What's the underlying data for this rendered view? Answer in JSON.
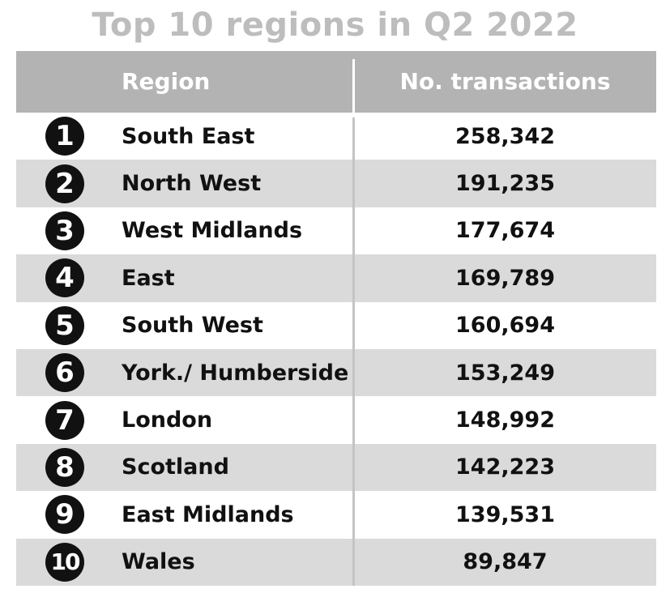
{
  "chart_data": {
    "type": "table",
    "title": "Top 10 regions in Q2 2022",
    "columns": [
      "Region",
      "No. transactions"
    ],
    "rows": [
      {
        "rank": "1",
        "region": "South East",
        "transactions": "258,342"
      },
      {
        "rank": "2",
        "region": "North West",
        "transactions": "191,235"
      },
      {
        "rank": "3",
        "region": "West Midlands",
        "transactions": "177,674"
      },
      {
        "rank": "4",
        "region": "East",
        "transactions": "169,789"
      },
      {
        "rank": "5",
        "region": "South West",
        "transactions": "160,694"
      },
      {
        "rank": "6",
        "region": "York./ Humberside",
        "transactions": "153,249"
      },
      {
        "rank": "7",
        "region": "London",
        "transactions": "148,992"
      },
      {
        "rank": "8",
        "region": "Scotland",
        "transactions": "142,223"
      },
      {
        "rank": "9",
        "region": "East Midlands",
        "transactions": "139,531"
      },
      {
        "rank": "10",
        "region": "Wales",
        "transactions": "89,847"
      }
    ],
    "colors": {
      "title": "#bdbdbd",
      "header_bg": "#b3b3b3",
      "stripe_bg": "#dadada",
      "rank_badge": "#111111"
    }
  }
}
